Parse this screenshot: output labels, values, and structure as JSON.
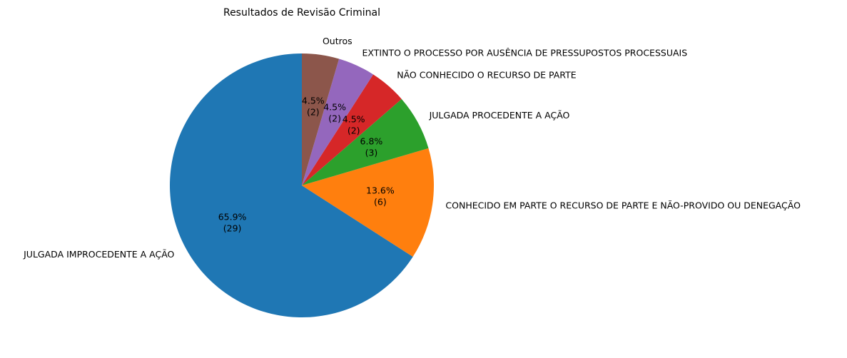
{
  "chart_data": {
    "type": "pie",
    "title": "Resultados de Revisão Criminal",
    "start_angle_deg": 90,
    "direction": "counterclockwise",
    "slices": [
      {
        "label": "JULGADA IMPROCEDENTE A AÇÃO",
        "value": 29,
        "pct": "65.9%",
        "count": "(29)",
        "color": "#1f77b4"
      },
      {
        "label": "CONHECIDO EM PARTE O RECURSO DE PARTE E NÃO-PROVIDO OU DENEGAÇÃO",
        "value": 6,
        "pct": "13.6%",
        "count": "(6)",
        "color": "#ff7f0e"
      },
      {
        "label": "JULGADA PROCEDENTE A AÇÃO",
        "value": 3,
        "pct": "6.8%",
        "count": "(3)",
        "color": "#2ca02c"
      },
      {
        "label": "NÃO CONHECIDO O RECURSO DE PARTE",
        "value": 2,
        "pct": "4.5%",
        "count": "(2)",
        "color": "#d62728"
      },
      {
        "label": "EXTINTO O PROCESSO POR AUSÊNCIA DE PRESSUPOSTOS PROCESSUAIS",
        "value": 2,
        "pct": "4.5%",
        "count": "(2)",
        "color": "#9467bd"
      },
      {
        "label": "Outros",
        "value": 2,
        "pct": "4.5%",
        "count": "(2)",
        "color": "#8c564b"
      }
    ]
  }
}
